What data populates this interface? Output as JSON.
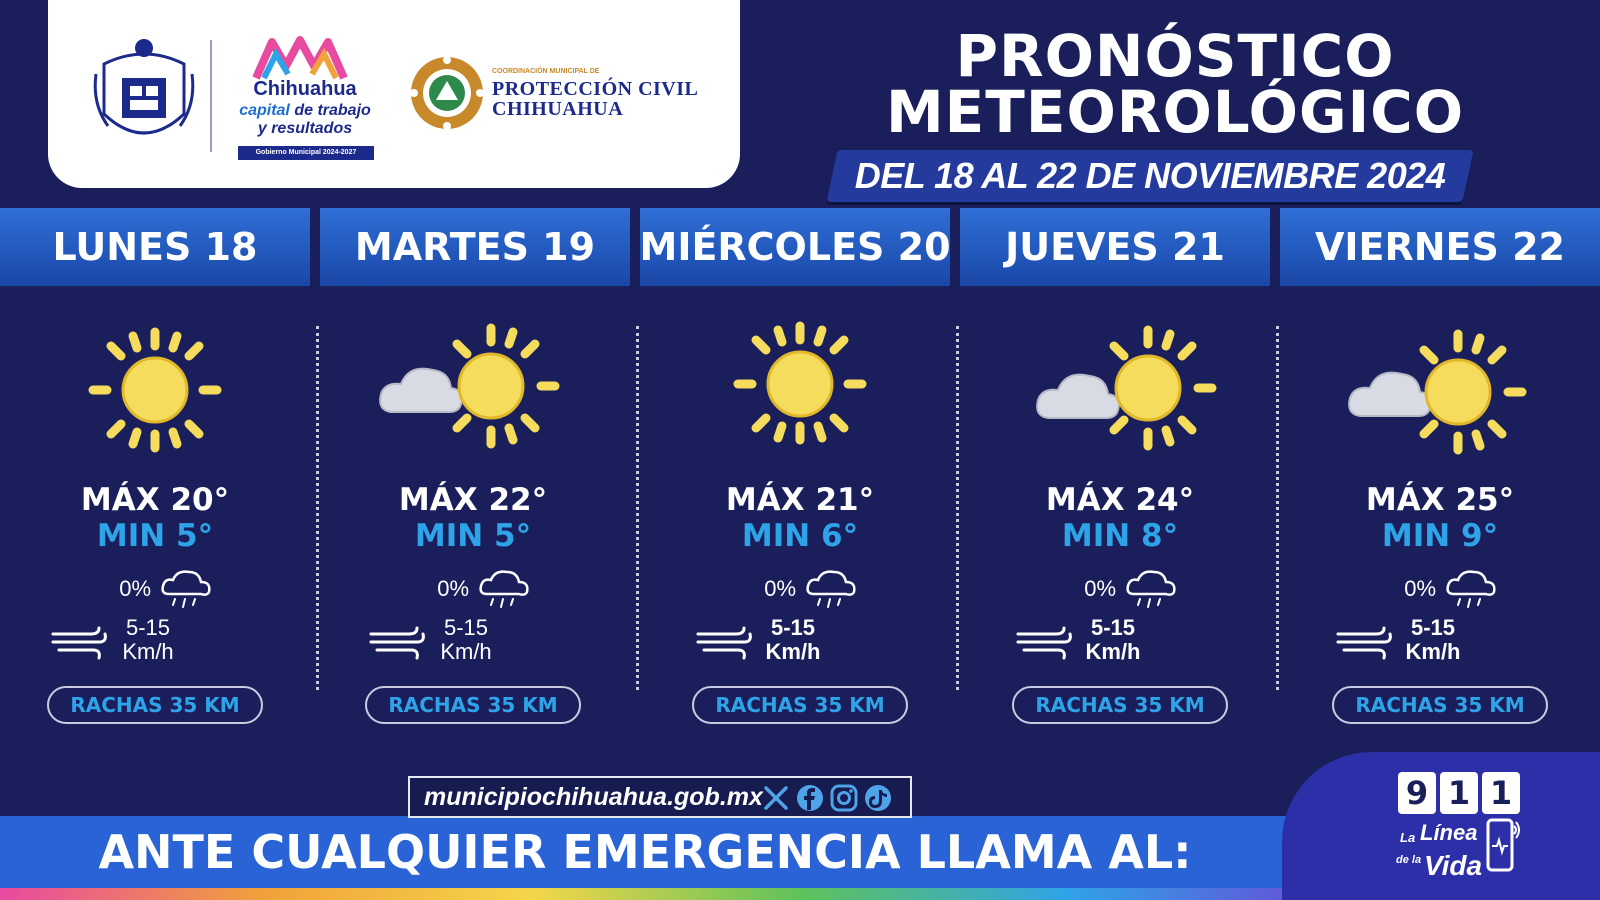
{
  "header": {
    "logo_chihuahua": {
      "name": "Chihuahua",
      "tagline_part1": "capital",
      "tagline_part2": "de trabajo",
      "tagline_part3": "y resultados",
      "gov": "Gobierno Municipal 2024-2027"
    },
    "logo_proteccion_civil": {
      "small": "COORDINACIÓN MUNICIPAL DE",
      "line1": "PROTECCIÓN CIVIL",
      "line2": "CHIHUAHUA"
    },
    "title_line1": "PRONÓSTICO",
    "title_line2": "METEOROLÓGICO",
    "date_range": "DEL 18 AL 22 DE NOVIEMBRE 2024"
  },
  "days": [
    {
      "label": "LUNES 18",
      "icon": "sun-icon",
      "max": "MÁX 20°",
      "min": "MIN 5°",
      "rain": "0%",
      "wind_value": "5-15",
      "wind_unit": "Km/h",
      "gust": "RACHAS 35 KM"
    },
    {
      "label": "MARTES 19",
      "icon": "partly-cloudy-icon",
      "max": "MÁX 22°",
      "min": "MIN 5°",
      "rain": "0%",
      "wind_value": "5-15",
      "wind_unit": "Km/h",
      "gust": "RACHAS 35 KM"
    },
    {
      "label": "MIÉRCOLES 20",
      "icon": "sun-icon",
      "max": "MÁX 21°",
      "min": "MIN 6°",
      "rain": "0%",
      "wind_value": "5-15",
      "wind_unit": "Km/h",
      "gust": "RACHAS 35 KM"
    },
    {
      "label": "JUEVES 21",
      "icon": "partly-cloudy-icon",
      "max": "MÁX 24°",
      "min": "MIN 8°",
      "rain": "0%",
      "wind_value": "5-15",
      "wind_unit": "Km/h",
      "gust": "RACHAS 35 KM"
    },
    {
      "label": "VIERNES 22",
      "icon": "partly-cloudy-icon",
      "max": "MÁX 25°",
      "min": "MIN 9°",
      "rain": "0%",
      "wind_value": "5-15",
      "wind_unit": "Km/h",
      "gust": "RACHAS 35 KM"
    }
  ],
  "footer": {
    "website": "municipiochihuahua.gob.mx",
    "social_icons": [
      "x-icon",
      "facebook-icon",
      "instagram-icon",
      "tiktok-icon"
    ],
    "emergency": "ANTE CUALQUIER EMERGENCIA LLAMA AL:",
    "emergency_number": [
      "9",
      "1",
      "1"
    ],
    "hotline_la": "La",
    "hotline_linea": "Línea",
    "hotline_dela": "de la",
    "hotline_vida": "Vida"
  },
  "colors": {
    "background": "#1a1f5c",
    "header_band": "#2f6fd6",
    "min_temp": "#2fa3e8",
    "sun": "#f6dc5c",
    "cloud": "#d9dbe4"
  }
}
